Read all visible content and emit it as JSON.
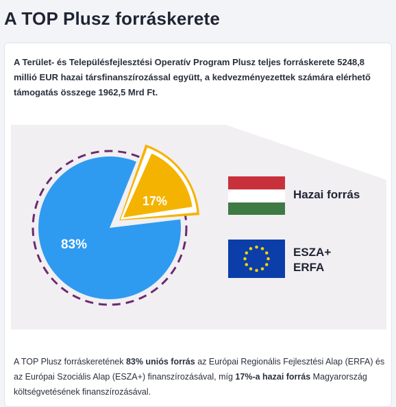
{
  "page": {
    "title": "A TOP Plusz forráskerete",
    "intro": "A Terület- és Településfejlesztési Operatív Program Plusz teljes forráskerete 5248,8 millió EUR hazai társfinanszírozással együtt, a kedvezményezettek számára elérhető támogatás összege 1962,5 Mrd Ft."
  },
  "legend": {
    "hazai": "Hazai forrás",
    "eu_line1": "ESZA+",
    "eu_line2": "ERFA"
  },
  "footer": {
    "t1": "A TOP Plusz forráskeretének ",
    "b1": "83% uniós forrás",
    "t2": " az Európai Regionális Fejlesztési Alap (ERFA) és az Európai Szociális Alap (ESZA+) finanszírozásával, míg ",
    "b2": "17%-a hazai forrás",
    "t3": " Magyarország költségvetésének finanszírozásával."
  },
  "chart_data": {
    "type": "pie",
    "categories": [
      "ESZA+ ERFA",
      "Hazai forrás"
    ],
    "values": [
      83,
      17
    ],
    "labels": [
      "83%",
      "17%"
    ],
    "colors": [
      "#2f9bf0",
      "#f5b301"
    ],
    "legend_position": "right"
  },
  "colors": {
    "pie_blue": "#2f9bf0",
    "pie_yellow": "#f5b301",
    "dash_ring": "#6b2a6f",
    "band": "#f1eff2",
    "hu_red": "#c8313b",
    "hu_white": "#ffffff",
    "hu_green": "#3f7a45",
    "eu_blue": "#0b3ea8",
    "eu_star": "#f4d20a"
  },
  "icons": {
    "hu_flag": "hungary-flag-icon",
    "eu_flag": "eu-flag-icon"
  }
}
